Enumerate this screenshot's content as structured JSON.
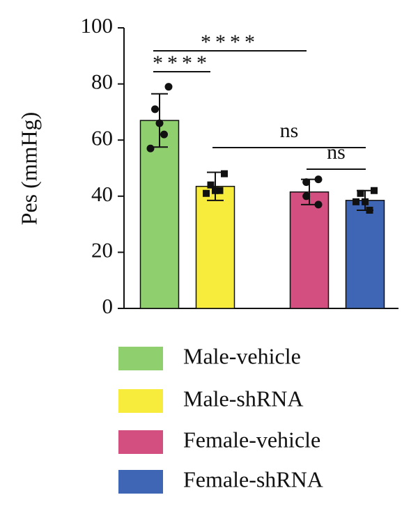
{
  "chart_data": {
    "type": "bar",
    "ylabel": "Pes (mmHg)",
    "categories": [
      "Male-vehicle",
      "Male-shRNA",
      "Female-vehicle",
      "Female-shRNA"
    ],
    "values": [
      67,
      43.5,
      41.5,
      38.5
    ],
    "errors": [
      9.5,
      5,
      4.5,
      3.5
    ],
    "colors": [
      "#8fcf6e",
      "#f7ec3b",
      "#d24f7f",
      "#3f66b4"
    ],
    "markers": [
      "circle",
      "square",
      "circle",
      "square"
    ],
    "points": [
      [
        79,
        71,
        66,
        62,
        57
      ],
      [
        48,
        44,
        42,
        42,
        41
      ],
      [
        46,
        45,
        40,
        37
      ],
      [
        42,
        41,
        38,
        35,
        38
      ]
    ],
    "annotations": [
      "****",
      "****",
      "ns",
      "ns"
    ],
    "ylim": [
      0,
      100
    ],
    "yticks": [
      0,
      20,
      40,
      60,
      80,
      100
    ]
  }
}
